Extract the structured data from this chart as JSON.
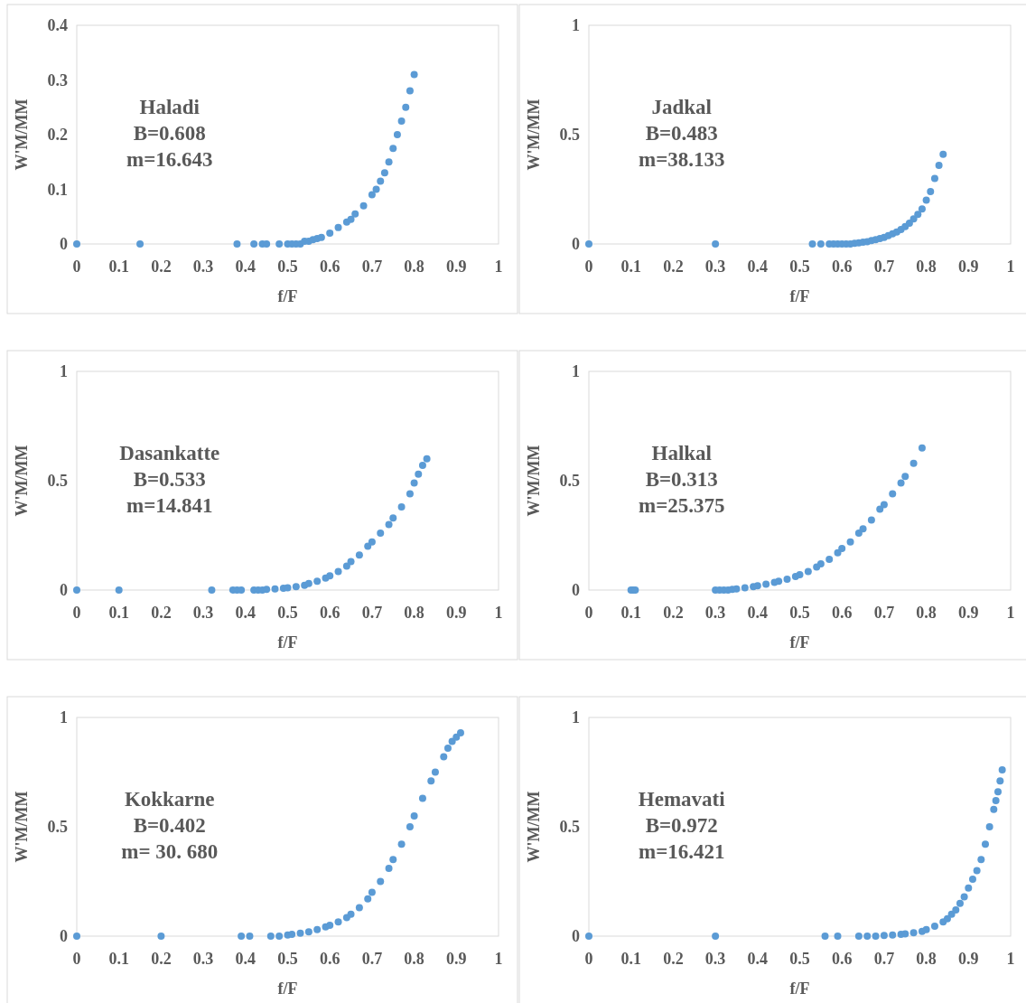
{
  "chart_data": [
    {
      "type": "scatter",
      "xlabel": "f/F",
      "ylabel": "W'M/MM",
      "annotations": [
        "Haladi",
        "B=0.608",
        "m=16.643"
      ],
      "xlim": [
        0,
        1
      ],
      "xticks": [
        0,
        0.1,
        0.2,
        0.3,
        0.4,
        0.5,
        0.6,
        0.7,
        0.8,
        0.9,
        1
      ],
      "ylim": [
        0,
        0.4
      ],
      "yticks": [
        0,
        0.1,
        0.2,
        0.3,
        0.4
      ],
      "marker": "circle",
      "series": [
        {
          "color": "#5b9bd5",
          "x": [
            0,
            0.15,
            0.38,
            0.42,
            0.44,
            0.45,
            0.48,
            0.5,
            0.51,
            0.52,
            0.53,
            0.54,
            0.55,
            0.56,
            0.57,
            0.58,
            0.6,
            0.62,
            0.64,
            0.65,
            0.66,
            0.68,
            0.7,
            0.71,
            0.72,
            0.73,
            0.74,
            0.75,
            0.76,
            0.77,
            0.78,
            0.79,
            0.8
          ],
          "values": [
            0,
            0,
            0,
            0,
            0,
            0,
            0,
            0,
            0,
            0,
            0,
            0.005,
            0.005,
            0.008,
            0.01,
            0.012,
            0.02,
            0.03,
            0.04,
            0.045,
            0.055,
            0.07,
            0.09,
            0.1,
            0.115,
            0.13,
            0.15,
            0.175,
            0.2,
            0.225,
            0.25,
            0.28,
            0.31
          ]
        }
      ]
    },
    {
      "type": "scatter",
      "xlabel": "f/F",
      "ylabel": "W'M/MM",
      "annotations": [
        "Jadkal",
        "B=0.483",
        "m=38.133"
      ],
      "xlim": [
        0,
        1
      ],
      "xticks": [
        0,
        0.1,
        0.2,
        0.3,
        0.4,
        0.5,
        0.6,
        0.7,
        0.8,
        0.9,
        1
      ],
      "ylim": [
        0,
        1
      ],
      "yticks": [
        0,
        0.5,
        1
      ],
      "marker": "circle",
      "series": [
        {
          "color": "#5b9bd5",
          "x": [
            0,
            0.3,
            0.53,
            0.55,
            0.57,
            0.58,
            0.59,
            0.6,
            0.61,
            0.62,
            0.63,
            0.64,
            0.65,
            0.66,
            0.67,
            0.68,
            0.69,
            0.7,
            0.71,
            0.72,
            0.73,
            0.74,
            0.75,
            0.76,
            0.77,
            0.78,
            0.79,
            0.8,
            0.81,
            0.82,
            0.83,
            0.84
          ],
          "values": [
            0,
            0,
            0,
            0,
            0,
            0,
            0,
            0,
            0,
            0,
            0.003,
            0.005,
            0.008,
            0.01,
            0.015,
            0.02,
            0.025,
            0.03,
            0.038,
            0.046,
            0.055,
            0.066,
            0.08,
            0.095,
            0.115,
            0.135,
            0.16,
            0.2,
            0.24,
            0.3,
            0.36,
            0.41
          ]
        }
      ]
    },
    {
      "type": "scatter",
      "xlabel": "f/F",
      "ylabel": "W'M/MM",
      "annotations": [
        "Dasankatte",
        "B=0.533",
        "m=14.841"
      ],
      "xlim": [
        0,
        1
      ],
      "xticks": [
        0,
        0.1,
        0.2,
        0.3,
        0.4,
        0.5,
        0.6,
        0.7,
        0.8,
        0.9,
        1
      ],
      "ylim": [
        0,
        1
      ],
      "yticks": [
        0,
        0.5,
        1
      ],
      "marker": "circle",
      "series": [
        {
          "color": "#5b9bd5",
          "x": [
            0,
            0.1,
            0.32,
            0.37,
            0.38,
            0.39,
            0.42,
            0.43,
            0.44,
            0.45,
            0.47,
            0.49,
            0.5,
            0.52,
            0.54,
            0.55,
            0.57,
            0.59,
            0.6,
            0.62,
            0.64,
            0.65,
            0.67,
            0.69,
            0.7,
            0.72,
            0.74,
            0.75,
            0.77,
            0.79,
            0.8,
            0.81,
            0.82,
            0.83
          ],
          "values": [
            0,
            0,
            0,
            0,
            0,
            0,
            0,
            0,
            0,
            0.003,
            0.005,
            0.008,
            0.01,
            0.015,
            0.022,
            0.03,
            0.04,
            0.055,
            0.065,
            0.085,
            0.11,
            0.13,
            0.16,
            0.2,
            0.22,
            0.26,
            0.3,
            0.33,
            0.38,
            0.44,
            0.49,
            0.53,
            0.57,
            0.6
          ]
        }
      ]
    },
    {
      "type": "scatter",
      "xlabel": "f/F",
      "ylabel": "W'M/MM",
      "annotations": [
        "Halkal",
        "B=0.313",
        "m=25.375"
      ],
      "xlim": [
        0,
        1
      ],
      "xticks": [
        0,
        0.1,
        0.2,
        0.3,
        0.4,
        0.5,
        0.6,
        0.7,
        0.8,
        0.9,
        1
      ],
      "ylim": [
        0,
        1
      ],
      "yticks": [
        0,
        0.5,
        1
      ],
      "marker": "circle",
      "series": [
        {
          "color": "#5b9bd5",
          "x": [
            0.1,
            0.105,
            0.11,
            0.3,
            0.31,
            0.32,
            0.33,
            0.34,
            0.35,
            0.37,
            0.39,
            0.4,
            0.42,
            0.44,
            0.45,
            0.47,
            0.49,
            0.5,
            0.52,
            0.54,
            0.55,
            0.57,
            0.59,
            0.6,
            0.62,
            0.64,
            0.65,
            0.67,
            0.69,
            0.7,
            0.72,
            0.74,
            0.75,
            0.77,
            0.79
          ],
          "values": [
            0,
            0,
            0,
            0,
            0,
            0,
            0,
            0.003,
            0.005,
            0.01,
            0.015,
            0.02,
            0.027,
            0.035,
            0.04,
            0.05,
            0.062,
            0.07,
            0.085,
            0.105,
            0.12,
            0.14,
            0.17,
            0.19,
            0.22,
            0.26,
            0.28,
            0.32,
            0.37,
            0.39,
            0.44,
            0.49,
            0.52,
            0.58,
            0.65
          ]
        }
      ]
    },
    {
      "type": "scatter",
      "xlabel": "f/F",
      "ylabel": "W'M/MM",
      "annotations": [
        "Kokkarne",
        "B=0.402",
        "m= 30. 680"
      ],
      "xlim": [
        0,
        1
      ],
      "xticks": [
        0,
        0.1,
        0.2,
        0.3,
        0.4,
        0.5,
        0.6,
        0.7,
        0.8,
        0.9,
        1
      ],
      "ylim": [
        0,
        1
      ],
      "yticks": [
        0,
        0.5,
        1
      ],
      "marker": "circle",
      "series": [
        {
          "color": "#5b9bd5",
          "x": [
            0,
            0.2,
            0.39,
            0.41,
            0.46,
            0.48,
            0.5,
            0.51,
            0.53,
            0.55,
            0.57,
            0.59,
            0.6,
            0.62,
            0.64,
            0.65,
            0.67,
            0.69,
            0.7,
            0.72,
            0.74,
            0.75,
            0.77,
            0.79,
            0.8,
            0.82,
            0.84,
            0.85,
            0.87,
            0.88,
            0.89,
            0.9,
            0.91
          ],
          "values": [
            0,
            0,
            0,
            0,
            0,
            0,
            0.005,
            0.008,
            0.013,
            0.02,
            0.03,
            0.042,
            0.05,
            0.065,
            0.085,
            0.1,
            0.13,
            0.17,
            0.2,
            0.25,
            0.31,
            0.35,
            0.42,
            0.5,
            0.55,
            0.63,
            0.71,
            0.75,
            0.82,
            0.86,
            0.89,
            0.91,
            0.93
          ]
        }
      ]
    },
    {
      "type": "scatter",
      "xlabel": "f/F",
      "ylabel": "W'M/MM",
      "annotations": [
        "Hemavati",
        "B=0.972",
        "m=16.421"
      ],
      "xlim": [
        0,
        1
      ],
      "xticks": [
        0,
        0.1,
        0.2,
        0.3,
        0.4,
        0.5,
        0.6,
        0.7,
        0.8,
        0.9,
        1
      ],
      "ylim": [
        0,
        1
      ],
      "yticks": [
        0,
        0.5,
        1
      ],
      "marker": "circle",
      "series": [
        {
          "color": "#5b9bd5",
          "x": [
            0,
            0.3,
            0.56,
            0.59,
            0.64,
            0.66,
            0.68,
            0.7,
            0.72,
            0.74,
            0.75,
            0.77,
            0.79,
            0.8,
            0.82,
            0.84,
            0.85,
            0.86,
            0.87,
            0.88,
            0.89,
            0.9,
            0.91,
            0.92,
            0.93,
            0.94,
            0.95,
            0.96,
            0.965,
            0.97,
            0.975,
            0.98
          ],
          "values": [
            0,
            0,
            0,
            0,
            0,
            0,
            0,
            0.003,
            0.005,
            0.008,
            0.01,
            0.015,
            0.022,
            0.03,
            0.045,
            0.065,
            0.08,
            0.1,
            0.12,
            0.15,
            0.18,
            0.22,
            0.26,
            0.3,
            0.35,
            0.42,
            0.5,
            0.58,
            0.62,
            0.66,
            0.71,
            0.76
          ]
        }
      ]
    }
  ]
}
